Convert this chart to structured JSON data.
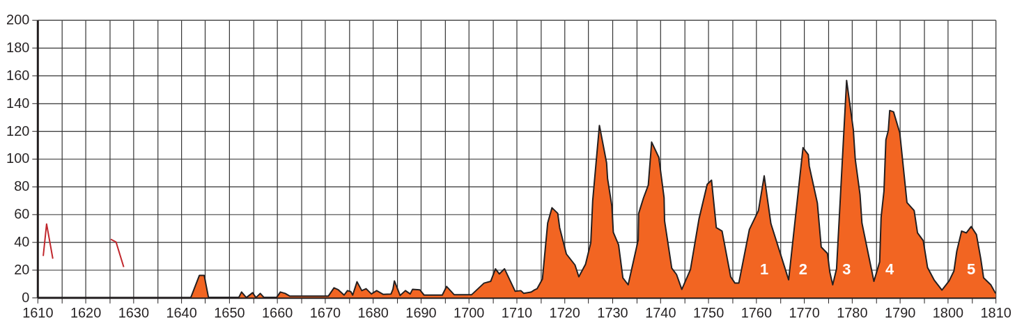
{
  "chart_data": {
    "type": "area",
    "xlim": [
      1610,
      1810
    ],
    "ylim": [
      0,
      200
    ],
    "xticks": [
      1610,
      {
        "value": 1615,
        "label": null
      },
      1620,
      {
        "value": 1625,
        "label": null
      },
      1630,
      {
        "value": 1635,
        "label": null
      },
      1640,
      {
        "value": 1645,
        "label": null
      },
      1650,
      {
        "value": 1655,
        "label": null
      },
      1660,
      {
        "value": 1665,
        "label": null
      },
      1670,
      {
        "value": 1675,
        "label": null
      },
      1680,
      {
        "value": 1685,
        "label": null
      },
      1690,
      {
        "value": 1695,
        "label": null
      },
      1700,
      {
        "value": 1705,
        "label": null
      },
      1710,
      {
        "value": 1715,
        "label": null
      },
      1720,
      {
        "value": 1725,
        "label": null
      },
      1730,
      {
        "value": 1735,
        "label": null
      },
      1740,
      {
        "value": 1745,
        "label": null
      },
      1750,
      {
        "value": 1755,
        "label": null
      },
      1760,
      {
        "value": 1765,
        "label": null
      },
      1770,
      {
        "value": 1775,
        "label": null
      },
      1780,
      {
        "value": 1785,
        "label": null
      },
      1790,
      {
        "value": 1795,
        "label": null
      },
      1800,
      {
        "value": 1805,
        "label": null
      },
      1810
    ],
    "yticks": [
      0,
      20,
      40,
      60,
      80,
      100,
      120,
      140,
      160,
      180,
      200
    ],
    "grid": true,
    "series": [
      {
        "color": "#f26522",
        "x": [
          1642,
          1643.8,
          1644.8,
          1645.7,
          1652,
          1652.6,
          1653.6,
          1654.9,
          1655.6,
          1656.5,
          1657.3,
          1659.9,
          1660.7,
          1661.7,
          1662.7,
          1670.7,
          1671.9,
          1672.8,
          1674,
          1674.7,
          1675.4,
          1675.8,
          1676.7,
          1677.7,
          1678.6,
          1679.7,
          1680.8,
          1682.2,
          1683.8,
          1684.2,
          1684.5,
          1685.7,
          1686.8,
          1687.8,
          1688.3,
          1689.8,
          1690.7,
          1694.5,
          1695.4,
          1697,
          1700.6,
          1703.2,
          1704.6,
          1705.6,
          1706.4,
          1707.5,
          1709.7,
          1710.9,
          1711.5,
          1713,
          1713.8,
          1714.3,
          1715.4,
          1716.5,
          1717.4,
          1718.6,
          1719,
          1720.4,
          1722.2,
          1723,
          1724.4,
          1725.5,
          1725.9,
          1727.3,
          1728.8,
          1729,
          1729.9,
          1730.2,
          1731.3,
          1732.2,
          1733.3,
          1735.4,
          1735.5,
          1736.5,
          1737.5,
          1738.2,
          1739.7,
          1740.8,
          1740.9,
          1742.4,
          1743.4,
          1744.5,
          1746.3,
          1748.1,
          1749.8,
          1750.7,
          1751.7,
          1752.9,
          1754.7,
          1755.6,
          1756.4,
          1758.6,
          1760.5,
          1761.7,
          1763.1,
          1766.8,
          1769.8,
          1770.9,
          1771.1,
          1772.8,
          1773.6,
          1774.9,
          1775.4,
          1776,
          1776.8,
          1778.9,
          1780.3,
          1780.7,
          1781.7,
          1782.1,
          1784.6,
          1785.8,
          1786.1,
          1786.7,
          1787.1,
          1787.6,
          1787.9,
          1788.7,
          1790,
          1791.5,
          1793,
          1793.7,
          1794.9,
          1795.8,
          1797.2,
          1798.8,
          1800.3,
          1801.3,
          1801.9,
          1802.9,
          1803.9,
          1804.9,
          1806,
          1806.9,
          1807.5,
          1809,
          1810
        ],
        "values": [
          0,
          16,
          16,
          0,
          0,
          4,
          0,
          3.5,
          0,
          3,
          0,
          0,
          4,
          3,
          1,
          1,
          7,
          5.6,
          1.8,
          5,
          4.3,
          1.8,
          11.4,
          5,
          6.4,
          2.6,
          5,
          2.3,
          2.6,
          6,
          12,
          1.5,
          5,
          2.6,
          6,
          5.6,
          1.8,
          1.8,
          8,
          2,
          2,
          10.4,
          11.7,
          20.7,
          17,
          20.7,
          4.6,
          5,
          3.1,
          3.9,
          5.6,
          6.4,
          13.3,
          53.7,
          64.7,
          60.7,
          50.4,
          31.4,
          23.5,
          15,
          24,
          39.6,
          70,
          124,
          97,
          85.8,
          66,
          47,
          38,
          14.2,
          9.2,
          41.6,
          60.7,
          71.8,
          81,
          112,
          101,
          71.8,
          55.3,
          21.2,
          16.6,
          5.9,
          20.2,
          56.9,
          81.6,
          84.6,
          50.4,
          47.9,
          15,
          10.4,
          10.4,
          49,
          62.7,
          87.7,
          53.2,
          12.8,
          108,
          103,
          94.8,
          68,
          36.4,
          31.8,
          18.3,
          9.2,
          20.7,
          156.5,
          121,
          99.8,
          74.2,
          53.7,
          11.7,
          25.7,
          57.8,
          76.7,
          113.7,
          120.3,
          134.8,
          133.8,
          118.7,
          68.5,
          62.7,
          46.6,
          41,
          21.6,
          12.5,
          5.4,
          12,
          19.1,
          33.4,
          47.9,
          46.6,
          51.2,
          45.4,
          28.1,
          14.2,
          9.2,
          3
        ]
      },
      {
        "type": "line",
        "color": "#c1272d",
        "x": [
          1611.2,
          1611.9,
          1613.2,
          1620,
          1625.3,
          1626.4,
          1628
        ],
        "values": [
          30,
          53,
          28,
          null,
          42,
          40,
          22
        ]
      }
    ],
    "annotations": [
      "1",
      "2",
      "3",
      "4",
      "5"
    ]
  }
}
